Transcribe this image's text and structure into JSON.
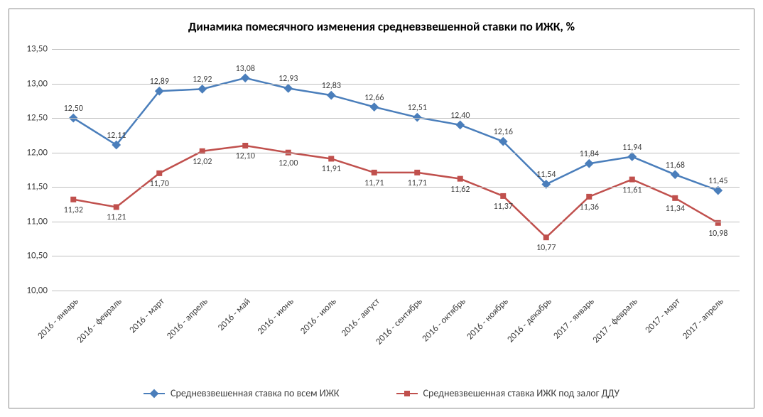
{
  "chart": {
    "title": "Динамика помесячного изменения средневзвешенной ставки по ИЖК, %",
    "title_fontsize": 17,
    "title_color": "#000000",
    "background_color": "#ffffff",
    "border_color": "#888888",
    "grid_color": "#bfbfbf",
    "axis_label_color": "#404040",
    "axis_fontsize": 13,
    "data_label_fontsize": 12,
    "ylim": [
      10.0,
      13.5
    ],
    "ytick_step": 0.5,
    "yticks": [
      "10,00",
      "10,50",
      "11,00",
      "11,50",
      "12,00",
      "12,50",
      "13,00",
      "13,50"
    ],
    "categories": [
      "2016 - январь",
      "2016 - февраль",
      "2016 - март",
      "2016 - апрель",
      "2016 - май",
      "2016 - июнь",
      "2016 - июль",
      "2016 - август",
      "2016 - сентябрь",
      "2016 - октябрь",
      "2016 - ноябрь",
      "2016 - декабрь",
      "2017 - январь",
      "2017 - февраль",
      "2017 - март",
      "2017 - апрель"
    ],
    "series": [
      {
        "name": "Средневзвешенная ставка по всем ИЖК",
        "color": "#4a7ebb",
        "marker": "diamond",
        "marker_size": 9,
        "line_width": 2.5,
        "values": [
          12.5,
          12.11,
          12.89,
          12.92,
          13.08,
          12.93,
          12.83,
          12.66,
          12.51,
          12.4,
          12.16,
          11.54,
          11.84,
          11.94,
          11.68,
          11.45
        ],
        "labels": [
          "12,50",
          "12,11",
          "12,89",
          "12,92",
          "13,08",
          "12,93",
          "12,83",
          "12,66",
          "12,51",
          "12,40",
          "12,16",
          "11,54",
          "11,84",
          "11,94",
          "11,68",
          "11,45"
        ],
        "label_position": "above"
      },
      {
        "name": "Средневзвешенная ставка ИЖК под залог ДДУ",
        "color": "#c0504d",
        "marker": "square",
        "marker_size": 8,
        "line_width": 2.5,
        "values": [
          11.32,
          11.21,
          11.7,
          12.02,
          12.1,
          12.0,
          11.91,
          11.71,
          11.71,
          11.62,
          11.37,
          10.77,
          11.36,
          11.61,
          11.34,
          10.98
        ],
        "labels": [
          "11,32",
          "11,21",
          "11,70",
          "12,02",
          "12,10",
          "12,00",
          "11,91",
          "11,71",
          "11,71",
          "11,62",
          "11,37",
          "10,77",
          "11,36",
          "11,61",
          "11,34",
          "10,98"
        ],
        "label_position": "below"
      }
    ],
    "legend_fontsize": 14
  }
}
